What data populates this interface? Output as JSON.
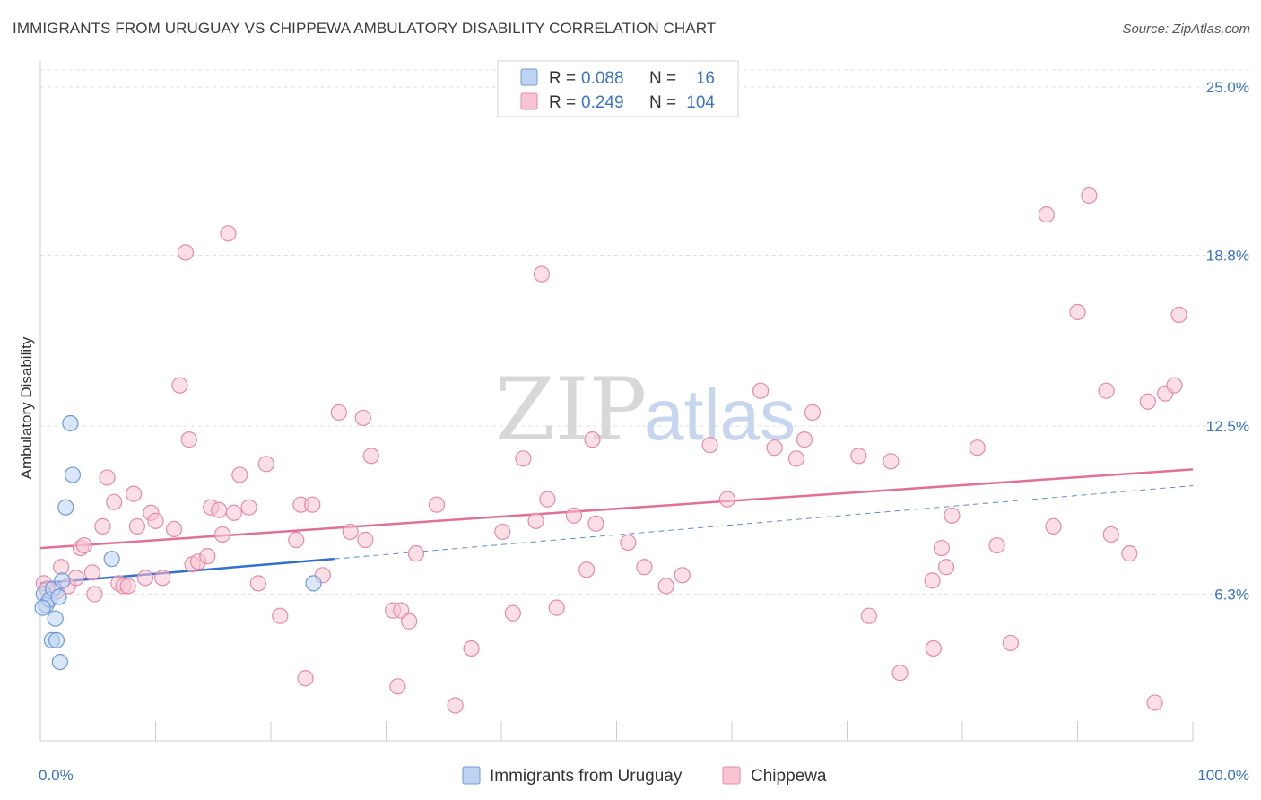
{
  "title": "IMMIGRANTS FROM URUGUAY VS CHIPPEWA AMBULATORY DISABILITY CORRELATION CHART",
  "source": "Source: ZipAtlas.com",
  "watermark": {
    "zip": "ZIP",
    "atlas": "atlas"
  },
  "legend": {
    "rows": [
      {
        "r_label": "R =",
        "r_value": "0.088",
        "n_label": "N =",
        "n_value": "16"
      },
      {
        "r_label": "R =",
        "r_value": "0.249",
        "n_label": "N =",
        "n_value": "104"
      }
    ]
  },
  "colors": {
    "uruguay_fill": "#bcd3f2",
    "uruguay_stroke": "#6f9ad8",
    "uruguay_line": "#3370cc",
    "chippewa_fill": "#f8c4d4",
    "chippewa_stroke": "#e78aa8",
    "chippewa_line": "#e0709a",
    "grid": "#e0e0e0",
    "axis_text": "#3b73c7"
  },
  "chart_data": {
    "type": "scatter",
    "xlabel": "",
    "ylabel": "Ambulatory Disability",
    "x_ticks": [
      "0.0%",
      "100.0%"
    ],
    "y_ticks": [
      "6.3%",
      "12.5%",
      "18.8%",
      "25.0%"
    ],
    "xlim": [
      0,
      100
    ],
    "ylim": [
      0,
      26.0
    ],
    "y_gridlines": [
      6.3,
      12.5,
      18.8,
      25.0
    ],
    "grid": true,
    "legend_placement": "top-center",
    "series": [
      {
        "name": "Immigrants from Uruguay",
        "points": [
          [
            0.3,
            6.3
          ],
          [
            0.5,
            5.9
          ],
          [
            0.8,
            6.1
          ],
          [
            1.0,
            4.6
          ],
          [
            1.1,
            6.5
          ],
          [
            1.3,
            5.4
          ],
          [
            1.4,
            4.6
          ],
          [
            1.6,
            6.2
          ],
          [
            1.7,
            3.8
          ],
          [
            1.9,
            6.8
          ],
          [
            2.2,
            9.5
          ],
          [
            2.6,
            12.6
          ],
          [
            2.8,
            10.7
          ],
          [
            6.2,
            7.6
          ],
          [
            23.7,
            6.7
          ],
          [
            0.2,
            5.8
          ]
        ],
        "trend": {
          "x0": 0,
          "y0": 6.7,
          "x1": 25.5,
          "y1": 7.6,
          "dash_x1": 100,
          "dash_y1": 10.3
        }
      },
      {
        "name": "Chippewa",
        "points": [
          [
            0.3,
            6.7
          ],
          [
            0.8,
            6.1
          ],
          [
            1.4,
            6.4
          ],
          [
            1.8,
            7.3
          ],
          [
            2.4,
            6.6
          ],
          [
            3.1,
            6.9
          ],
          [
            3.5,
            8.0
          ],
          [
            3.8,
            8.1
          ],
          [
            4.5,
            7.1
          ],
          [
            4.7,
            6.3
          ],
          [
            5.4,
            8.8
          ],
          [
            5.8,
            10.6
          ],
          [
            6.4,
            9.7
          ],
          [
            6.8,
            6.7
          ],
          [
            7.2,
            6.6
          ],
          [
            7.6,
            6.6
          ],
          [
            8.1,
            10.0
          ],
          [
            8.4,
            8.8
          ],
          [
            9.1,
            6.9
          ],
          [
            9.6,
            9.3
          ],
          [
            10.0,
            9.0
          ],
          [
            10.6,
            6.9
          ],
          [
            11.6,
            8.7
          ],
          [
            12.1,
            14.0
          ],
          [
            12.6,
            18.9
          ],
          [
            12.9,
            12.0
          ],
          [
            13.2,
            7.4
          ],
          [
            13.7,
            7.5
          ],
          [
            14.5,
            7.7
          ],
          [
            14.8,
            9.5
          ],
          [
            15.5,
            9.4
          ],
          [
            15.8,
            8.5
          ],
          [
            16.3,
            19.6
          ],
          [
            16.8,
            9.3
          ],
          [
            17.3,
            10.7
          ],
          [
            18.1,
            9.5
          ],
          [
            18.9,
            6.7
          ],
          [
            19.6,
            11.1
          ],
          [
            20.8,
            5.5
          ],
          [
            22.2,
            8.3
          ],
          [
            22.6,
            9.6
          ],
          [
            23.0,
            3.2
          ],
          [
            23.6,
            9.6
          ],
          [
            24.5,
            7.0
          ],
          [
            25.9,
            13.0
          ],
          [
            26.9,
            8.6
          ],
          [
            28.0,
            12.8
          ],
          [
            28.2,
            8.3
          ],
          [
            28.7,
            11.4
          ],
          [
            30.6,
            5.7
          ],
          [
            31.0,
            2.9
          ],
          [
            31.3,
            5.7
          ],
          [
            32.0,
            5.3
          ],
          [
            32.6,
            7.8
          ],
          [
            34.4,
            9.6
          ],
          [
            36.0,
            2.2
          ],
          [
            37.4,
            4.3
          ],
          [
            40.1,
            8.6
          ],
          [
            41.0,
            5.6
          ],
          [
            41.9,
            11.3
          ],
          [
            43.0,
            9.0
          ],
          [
            43.5,
            18.1
          ],
          [
            44.0,
            9.8
          ],
          [
            44.8,
            5.8
          ],
          [
            46.3,
            9.2
          ],
          [
            47.4,
            7.2
          ],
          [
            47.9,
            12.0
          ],
          [
            48.2,
            8.9
          ],
          [
            51.0,
            8.2
          ],
          [
            52.4,
            7.3
          ],
          [
            54.3,
            6.6
          ],
          [
            55.7,
            7.0
          ],
          [
            58.1,
            11.8
          ],
          [
            59.6,
            9.8
          ],
          [
            62.5,
            13.8
          ],
          [
            63.7,
            11.7
          ],
          [
            65.6,
            11.3
          ],
          [
            66.3,
            12.0
          ],
          [
            67.0,
            13.0
          ],
          [
            71.0,
            11.4
          ],
          [
            71.9,
            5.5
          ],
          [
            73.8,
            11.2
          ],
          [
            74.6,
            3.4
          ],
          [
            77.4,
            6.8
          ],
          [
            77.5,
            4.3
          ],
          [
            78.2,
            8.0
          ],
          [
            78.6,
            7.3
          ],
          [
            79.1,
            9.2
          ],
          [
            81.3,
            11.7
          ],
          [
            83.0,
            8.1
          ],
          [
            84.2,
            4.5
          ],
          [
            87.3,
            20.3
          ],
          [
            87.9,
            8.8
          ],
          [
            90.0,
            16.7
          ],
          [
            91.0,
            21.0
          ],
          [
            92.5,
            13.8
          ],
          [
            92.9,
            8.5
          ],
          [
            94.5,
            7.8
          ],
          [
            96.1,
            13.4
          ],
          [
            96.7,
            2.3
          ],
          [
            97.6,
            13.7
          ],
          [
            98.4,
            14.0
          ],
          [
            98.8,
            16.6
          ],
          [
            0.6,
            6.5
          ]
        ],
        "trend": {
          "x0": 0,
          "y0": 8.0,
          "x1": 100,
          "y1": 10.9
        }
      }
    ]
  }
}
